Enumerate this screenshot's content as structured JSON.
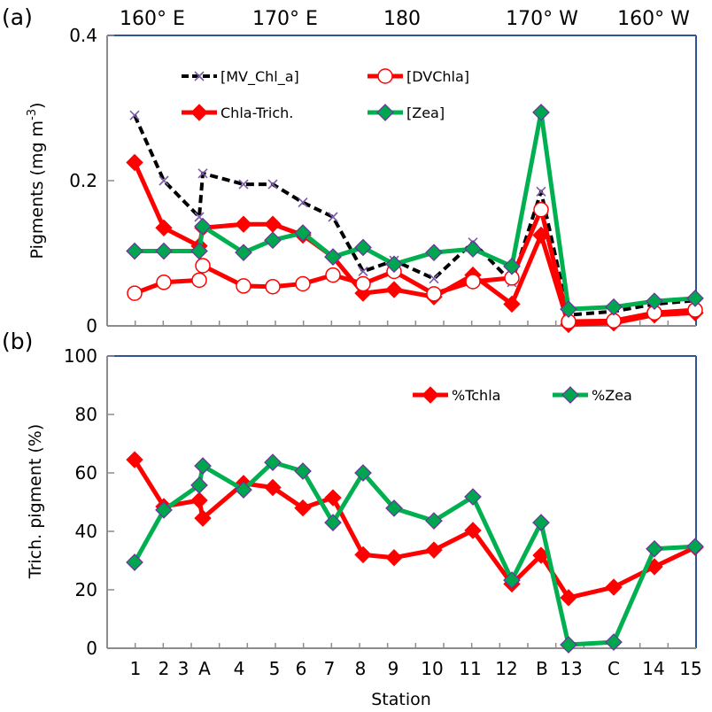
{
  "figure": {
    "top_labels": [
      "160° E",
      "170° E",
      "180",
      "170° W",
      "160° W"
    ],
    "xlabel": "Station"
  },
  "chart_data": [
    {
      "type": "line",
      "panel_label": "(a)",
      "title": "",
      "xlabel": "",
      "ylabel": "Pigments (mg m-3)",
      "ylabel_main": "Pigments  (mg m",
      "ylabel_sup": "-3",
      "ylabel_tail": ")",
      "ylim": [
        0,
        0.4
      ],
      "yticks": [
        0,
        0.2,
        0.4
      ],
      "ytick_labels": [
        "0",
        "0.2",
        "0.4"
      ],
      "grid": false,
      "legend_placement": "top-left, two columns",
      "categories": [
        "1",
        "2",
        "3",
        "A",
        "4",
        "5",
        "6",
        "7",
        "8",
        "9",
        "10",
        "11",
        "12",
        "B",
        "13",
        "C",
        "14",
        "15"
      ],
      "series": [
        {
          "name": "[MV_Chl_a]",
          "color": "#000000",
          "marker": "x",
          "dashed": true,
          "values": [
            0.29,
            0.2,
            0.15,
            0.21,
            0.195,
            0.195,
            0.17,
            0.15,
            0.075,
            0.09,
            0.065,
            0.115,
            0.06,
            0.185,
            0.015,
            0.02,
            0.03,
            0.035
          ]
        },
        {
          "name": "Chla-Trich.",
          "color": "#ff0000",
          "marker": "diamond-filled",
          "dashed": false,
          "values": [
            0.225,
            0.135,
            0.11,
            0.135,
            0.14,
            0.14,
            0.125,
            0.095,
            0.045,
            0.05,
            0.04,
            0.07,
            0.03,
            0.125,
            0.002,
            0.004,
            0.015,
            0.018
          ]
        },
        {
          "name": "[DVChla]",
          "color": "#ff0000",
          "marker": "circle-open",
          "dashed": false,
          "values": [
            0.045,
            0.06,
            0.063,
            0.083,
            0.055,
            0.054,
            0.058,
            0.07,
            0.058,
            0.075,
            0.044,
            0.061,
            0.066,
            0.16,
            0.006,
            0.007,
            0.018,
            0.022
          ]
        },
        {
          "name": "[Zea]",
          "color": "#00b050",
          "marker": "diamond-green",
          "dashed": false,
          "values": [
            0.103,
            0.103,
            0.103,
            0.137,
            0.101,
            0.118,
            0.128,
            0.095,
            0.108,
            0.085,
            0.101,
            0.106,
            0.082,
            0.294,
            0.023,
            0.026,
            0.034,
            0.038
          ]
        }
      ]
    },
    {
      "type": "line",
      "panel_label": "(b)",
      "title": "",
      "xlabel": "Station",
      "ylabel": "Trich. pigment (%)",
      "ylim": [
        0,
        100
      ],
      "yticks": [
        0,
        20,
        40,
        60,
        80,
        100
      ],
      "ytick_labels": [
        "0",
        "20",
        "40",
        "60",
        "80",
        "100"
      ],
      "grid": false,
      "legend_placement": "top-right",
      "categories": [
        "1",
        "2",
        "3",
        "A",
        "4",
        "5",
        "6",
        "7",
        "8",
        "9",
        "10",
        "11",
        "12",
        "B",
        "13",
        "C",
        "14",
        "15"
      ],
      "series": [
        {
          "name": "%Tchla",
          "color": "#ff0000",
          "marker": "diamond-filled",
          "dashed": false,
          "values": [
            64.5,
            48.5,
            50.6,
            44.5,
            56.4,
            55,
            48,
            51.5,
            32,
            31,
            33.6,
            40.3,
            22,
            31.8,
            17.3,
            20.9,
            27.9,
            34.5
          ]
        },
        {
          "name": "%Zea",
          "color": "#00b050",
          "marker": "diamond-green",
          "dashed": false,
          "values": [
            29.4,
            47.3,
            55.8,
            62.4,
            54.2,
            63.6,
            60.6,
            43,
            60,
            47.9,
            43.6,
            51.8,
            23.3,
            43,
            1.2,
            2.1,
            34,
            34.8
          ]
        }
      ]
    }
  ]
}
